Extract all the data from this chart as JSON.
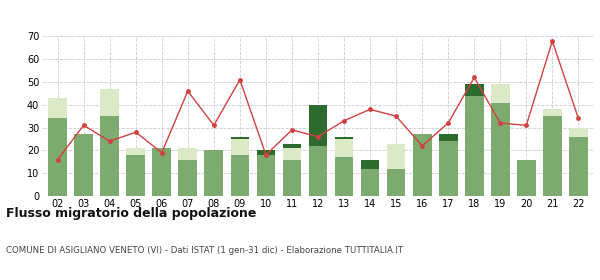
{
  "years": [
    "02",
    "03",
    "04",
    "05",
    "06",
    "07",
    "08",
    "09",
    "10",
    "11",
    "12",
    "13",
    "14",
    "15",
    "16",
    "17",
    "18",
    "19",
    "20",
    "21",
    "22"
  ],
  "iscritti_altri_comuni": [
    34,
    27,
    35,
    18,
    21,
    16,
    20,
    18,
    18,
    16,
    22,
    17,
    12,
    12,
    27,
    24,
    44,
    41,
    16,
    35,
    26
  ],
  "iscritti_estero": [
    9,
    0,
    12,
    3,
    0,
    5,
    0,
    7,
    0,
    5,
    0,
    8,
    0,
    11,
    0,
    0,
    0,
    8,
    0,
    3,
    4
  ],
  "iscritti_altri": [
    0,
    0,
    0,
    0,
    0,
    0,
    0,
    1,
    2,
    2,
    18,
    1,
    4,
    0,
    0,
    3,
    5,
    0,
    0,
    0,
    0
  ],
  "cancellati": [
    16,
    31,
    24,
    28,
    19,
    46,
    31,
    51,
    18,
    29,
    26,
    33,
    38,
    35,
    22,
    32,
    52,
    32,
    31,
    68,
    34
  ],
  "color_altri_comuni": "#7daa6e",
  "color_estero": "#dce9c6",
  "color_altri": "#2d6a2d",
  "color_cancellati": "#d44040",
  "title": "Flusso migratorio della popolazione",
  "subtitle": "COMUNE DI ASIGLIANO VENETO (VI) - Dati ISTAT (1 gen-31 dic) - Elaborazione TUTTITALIA.IT",
  "ylim": [
    0,
    70
  ],
  "yticks": [
    0,
    10,
    20,
    30,
    40,
    50,
    60,
    70
  ],
  "bg_color": "#ffffff",
  "grid_color": "#cccccc"
}
